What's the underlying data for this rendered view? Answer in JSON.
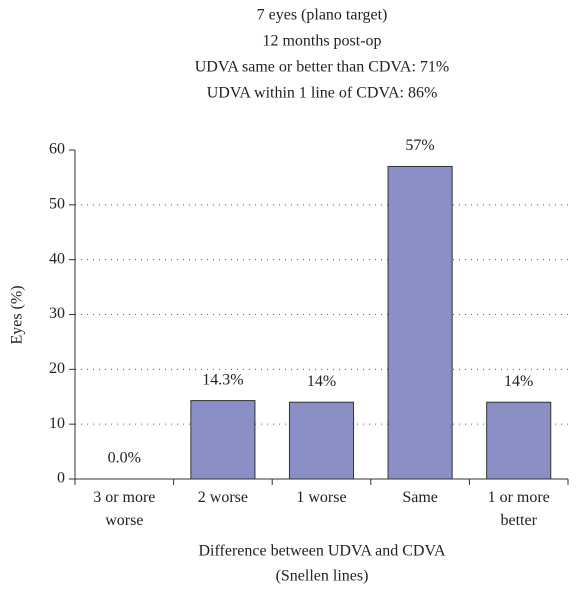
{
  "chart_data": {
    "type": "bar",
    "title": [
      "7 eyes (plano target)",
      "12 months post-op",
      "UDVA same or better than CDVA: 71%",
      "UDVA within 1 line of CDVA: 86%"
    ],
    "xlabel": [
      "Difference between UDVA and CDVA",
      "(Snellen lines)"
    ],
    "ylabel": "Eyes (%)",
    "categories": [
      "3 or more worse",
      "2 worse",
      "1 worse",
      "Same",
      "1 or more better"
    ],
    "values": [
      0,
      14.3,
      14,
      57,
      14
    ],
    "value_labels": [
      "0.0%",
      "14.3%",
      "14%",
      "57%",
      "14%"
    ],
    "color": "#8a8fc6",
    "ylim": [
      0,
      60
    ],
    "yticks": [
      0,
      10,
      20,
      30,
      40,
      50,
      60
    ],
    "grid": true
  }
}
